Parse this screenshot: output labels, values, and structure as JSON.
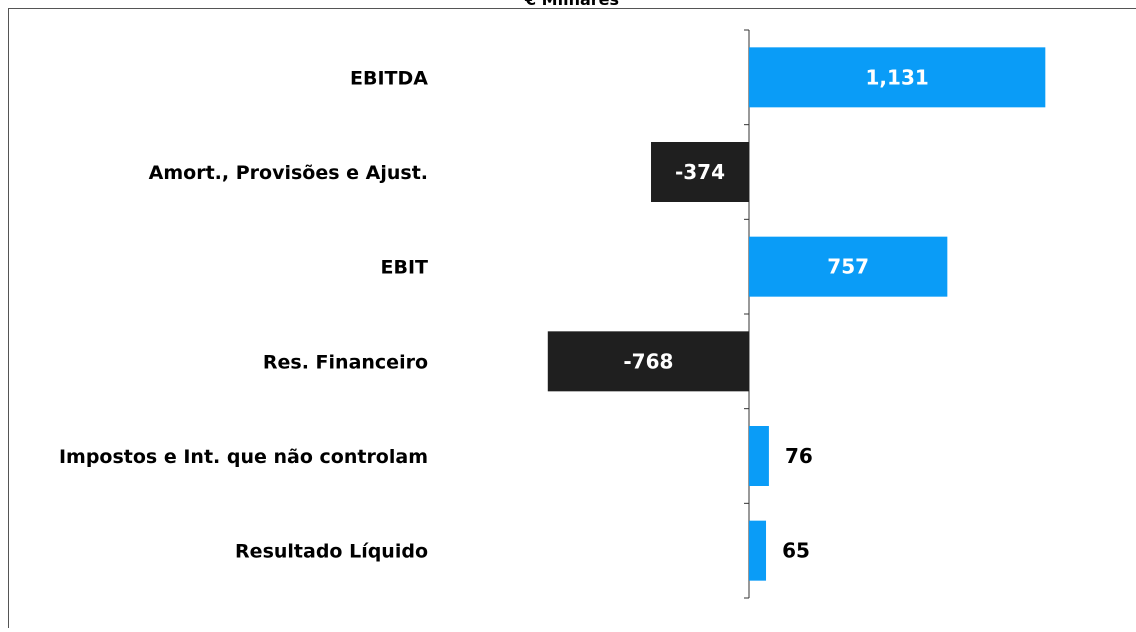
{
  "chart_data": {
    "type": "hbar",
    "title": "€ Milhares",
    "categories": [
      "EBITDA",
      "Amort., Provisões e Ajust.",
      "EBIT",
      "Res. Financeiro",
      "Impostos e Int. que não controlam",
      "Resultado Líquido"
    ],
    "values": [
      1131,
      -374,
      757,
      -768,
      76,
      65
    ],
    "value_labels": [
      "1,131",
      "-374",
      "757",
      "-768",
      "76",
      "65"
    ],
    "colors": [
      "#0a9cf7",
      "#1f1f1f",
      "#0a9cf7",
      "#1f1f1f",
      "#0a9cf7",
      "#0a9cf7"
    ],
    "xlim": [
      -1200,
      1400
    ]
  }
}
